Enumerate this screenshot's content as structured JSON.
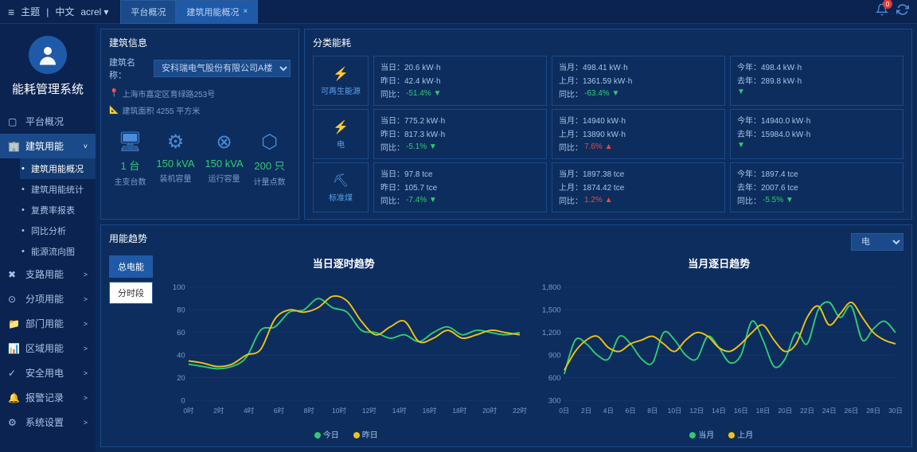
{
  "topbar": {
    "theme": "主题",
    "lang": "中文",
    "user": "acrel",
    "tab1": "平台概况",
    "tab2": "建筑用能概况",
    "badge": "0"
  },
  "sidebar": {
    "title": "能耗管理系统",
    "items": [
      {
        "label": "平台概况"
      },
      {
        "label": "建筑用能",
        "expanded": true,
        "sub": [
          {
            "label": "建筑用能概况",
            "sel": true
          },
          {
            "label": "建筑用能统计"
          },
          {
            "label": "复费率报表"
          },
          {
            "label": "同比分析"
          },
          {
            "label": "能源流向图"
          }
        ]
      },
      {
        "label": "支路用能"
      },
      {
        "label": "分项用能"
      },
      {
        "label": "部门用能"
      },
      {
        "label": "区域用能"
      },
      {
        "label": "安全用电"
      },
      {
        "label": "报警记录"
      },
      {
        "label": "系统设置"
      }
    ]
  },
  "building": {
    "panel_title": "建筑信息",
    "name_label": "建筑名称：",
    "name_value": "安科瑞电气股份有限公司A楼",
    "address": "上海市嘉定区育绿路253号",
    "area": "建筑面积 4255 平方米",
    "metrics": [
      {
        "val": "1 台",
        "lbl": "主变台数"
      },
      {
        "val": "150 kVA",
        "lbl": "装机容量"
      },
      {
        "val": "150 kVA",
        "lbl": "运行容量"
      },
      {
        "val": "200 只",
        "lbl": "计量点数"
      }
    ]
  },
  "energy": {
    "panel_title": "分类能耗",
    "types": [
      {
        "label": "可再生能源"
      },
      {
        "label": "电"
      },
      {
        "label": "标准煤"
      }
    ],
    "data": [
      [
        {
          "l1": "当日：20.6 kW·h",
          "l2": "昨日：42.4 kW·h",
          "cmp": "同比：",
          "pct": "-51.4%",
          "dir": "down",
          "cls": "green"
        },
        {
          "l1": "当月：498.41 kW·h",
          "l2": "上月：1361.59 kW·h",
          "cmp": "同比：",
          "pct": "-63.4%",
          "dir": "down",
          "cls": "green"
        },
        {
          "l1": "今年：498.4 kW·h",
          "l2": "去年：289.8 kW·h",
          "cmp": "",
          "pct": "",
          "dir": "down",
          "cls": "green"
        }
      ],
      [
        {
          "l1": "当日：775.2 kW·h",
          "l2": "昨日：817.3 kW·h",
          "cmp": "同比：",
          "pct": "-5.1%",
          "dir": "down",
          "cls": "green"
        },
        {
          "l1": "当月：14940 kW·h",
          "l2": "上月：13890 kW·h",
          "cmp": "同比：",
          "pct": "7.6%",
          "dir": "up",
          "cls": "red"
        },
        {
          "l1": "今年：14940.0 kW·h",
          "l2": "去年：15984.0 kW·h",
          "cmp": "",
          "pct": "",
          "dir": "down",
          "cls": "green"
        }
      ],
      [
        {
          "l1": "当日：97.8 tce",
          "l2": "昨日：105.7 tce",
          "cmp": "同比：",
          "pct": "-7.4%",
          "dir": "down",
          "cls": "green"
        },
        {
          "l1": "当月：1897.38 tce",
          "l2": "上月：1874.42 tce",
          "cmp": "同比：",
          "pct": "1.2%",
          "dir": "up",
          "cls": "red"
        },
        {
          "l1": "今年：1897.4 tce",
          "l2": "去年：2007.6 tce",
          "cmp": "同比：",
          "pct": "-5.5%",
          "dir": "down",
          "cls": "green"
        }
      ]
    ]
  },
  "trends": {
    "panel_title": "用能趋势",
    "type_sel": "电",
    "btn1": "总电能",
    "btn2": "分时段",
    "chart1": {
      "title": "当日逐时趋势",
      "ylim": [
        0,
        100
      ],
      "yticks": [
        0,
        20,
        40,
        60,
        80,
        100
      ],
      "xticks": [
        "0时",
        "2时",
        "4时",
        "6时",
        "8时",
        "10时",
        "12时",
        "14时",
        "16时",
        "18时",
        "20时",
        "22时"
      ],
      "series": [
        {
          "name": "今日",
          "color": "#2ecc71",
          "data": [
            32,
            30,
            28,
            30,
            38,
            62,
            65,
            78,
            80,
            90,
            82,
            78,
            62,
            60,
            55,
            58,
            52,
            60,
            65,
            58,
            62,
            60,
            58,
            60
          ]
        },
        {
          "name": "昨日",
          "color": "#f1c40f",
          "data": [
            35,
            33,
            30,
            32,
            40,
            45,
            72,
            80,
            78,
            82,
            92,
            88,
            70,
            58,
            65,
            70,
            52,
            55,
            62,
            55,
            58,
            62,
            60,
            58
          ]
        }
      ],
      "legend": [
        "今日",
        "昨日"
      ]
    },
    "chart2": {
      "title": "当月逐日趋势",
      "ylim": [
        300,
        1800
      ],
      "yticks": [
        300,
        600,
        900,
        1200,
        1500,
        1800
      ],
      "xticks": [
        "0日",
        "2日",
        "4日",
        "6日",
        "8日",
        "10日",
        "12日",
        "14日",
        "16日",
        "18日",
        "20日",
        "22日",
        "24日",
        "26日",
        "28日",
        "30日"
      ],
      "series": [
        {
          "name": "当月",
          "color": "#2ecc71",
          "data": [
            650,
            1100,
            1050,
            900,
            850,
            1150,
            1050,
            850,
            800,
            1200,
            1100,
            900,
            850,
            1150,
            1000,
            800,
            900,
            1350,
            1100,
            750,
            850,
            1200,
            1050,
            1500,
            1600,
            1400,
            1550,
            1100,
            1250,
            1350,
            1200
          ]
        },
        {
          "name": "上月",
          "color": "#f1c40f",
          "data": [
            700,
            950,
            1100,
            1150,
            1000,
            950,
            1050,
            1100,
            1150,
            1050,
            950,
            1100,
            1200,
            1150,
            1000,
            950,
            1050,
            1200,
            1300,
            1100,
            950,
            1050,
            1400,
            1550,
            1300,
            1450,
            1600,
            1400,
            1200,
            1100,
            1050
          ]
        }
      ],
      "legend": [
        "当月",
        "上月"
      ]
    }
  },
  "colors": {
    "bg": "#0b2a5a",
    "panel": "#0d2d5e",
    "border": "#1a4a8a",
    "accent": "#1e5aa8",
    "green": "#2ecc71",
    "red": "#e74c3c",
    "yellow": "#f1c40f"
  }
}
